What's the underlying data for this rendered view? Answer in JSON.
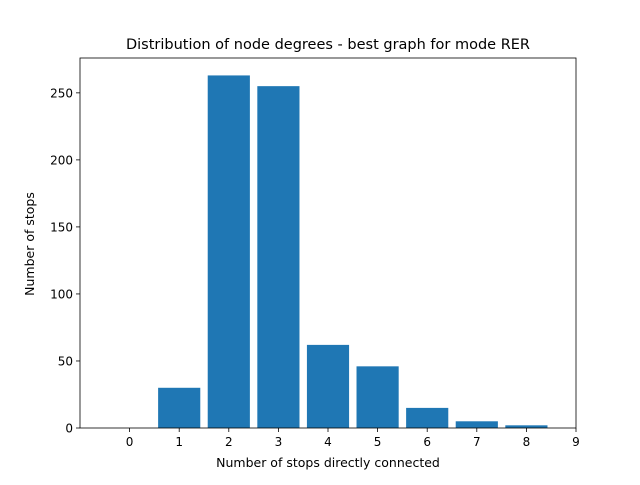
{
  "chart_data": {
    "type": "bar",
    "title": "Distribution of node degrees - best graph for mode RER",
    "xlabel": "Number of stops directly connected",
    "ylabel": "Number of stops",
    "categories": [
      0,
      1,
      2,
      3,
      4,
      5,
      6,
      7,
      8
    ],
    "values": [
      0,
      30,
      263,
      255,
      62,
      46,
      15,
      5,
      2
    ],
    "xlim": [
      -1,
      9
    ],
    "ylim": [
      0,
      276
    ],
    "xticks": [
      0,
      1,
      2,
      3,
      4,
      5,
      6,
      7,
      8,
      9
    ],
    "yticks": [
      0,
      50,
      100,
      150,
      200,
      250
    ],
    "bar_width": 0.85,
    "bar_color": "#1f77b4",
    "grid": false,
    "legend": "none"
  }
}
